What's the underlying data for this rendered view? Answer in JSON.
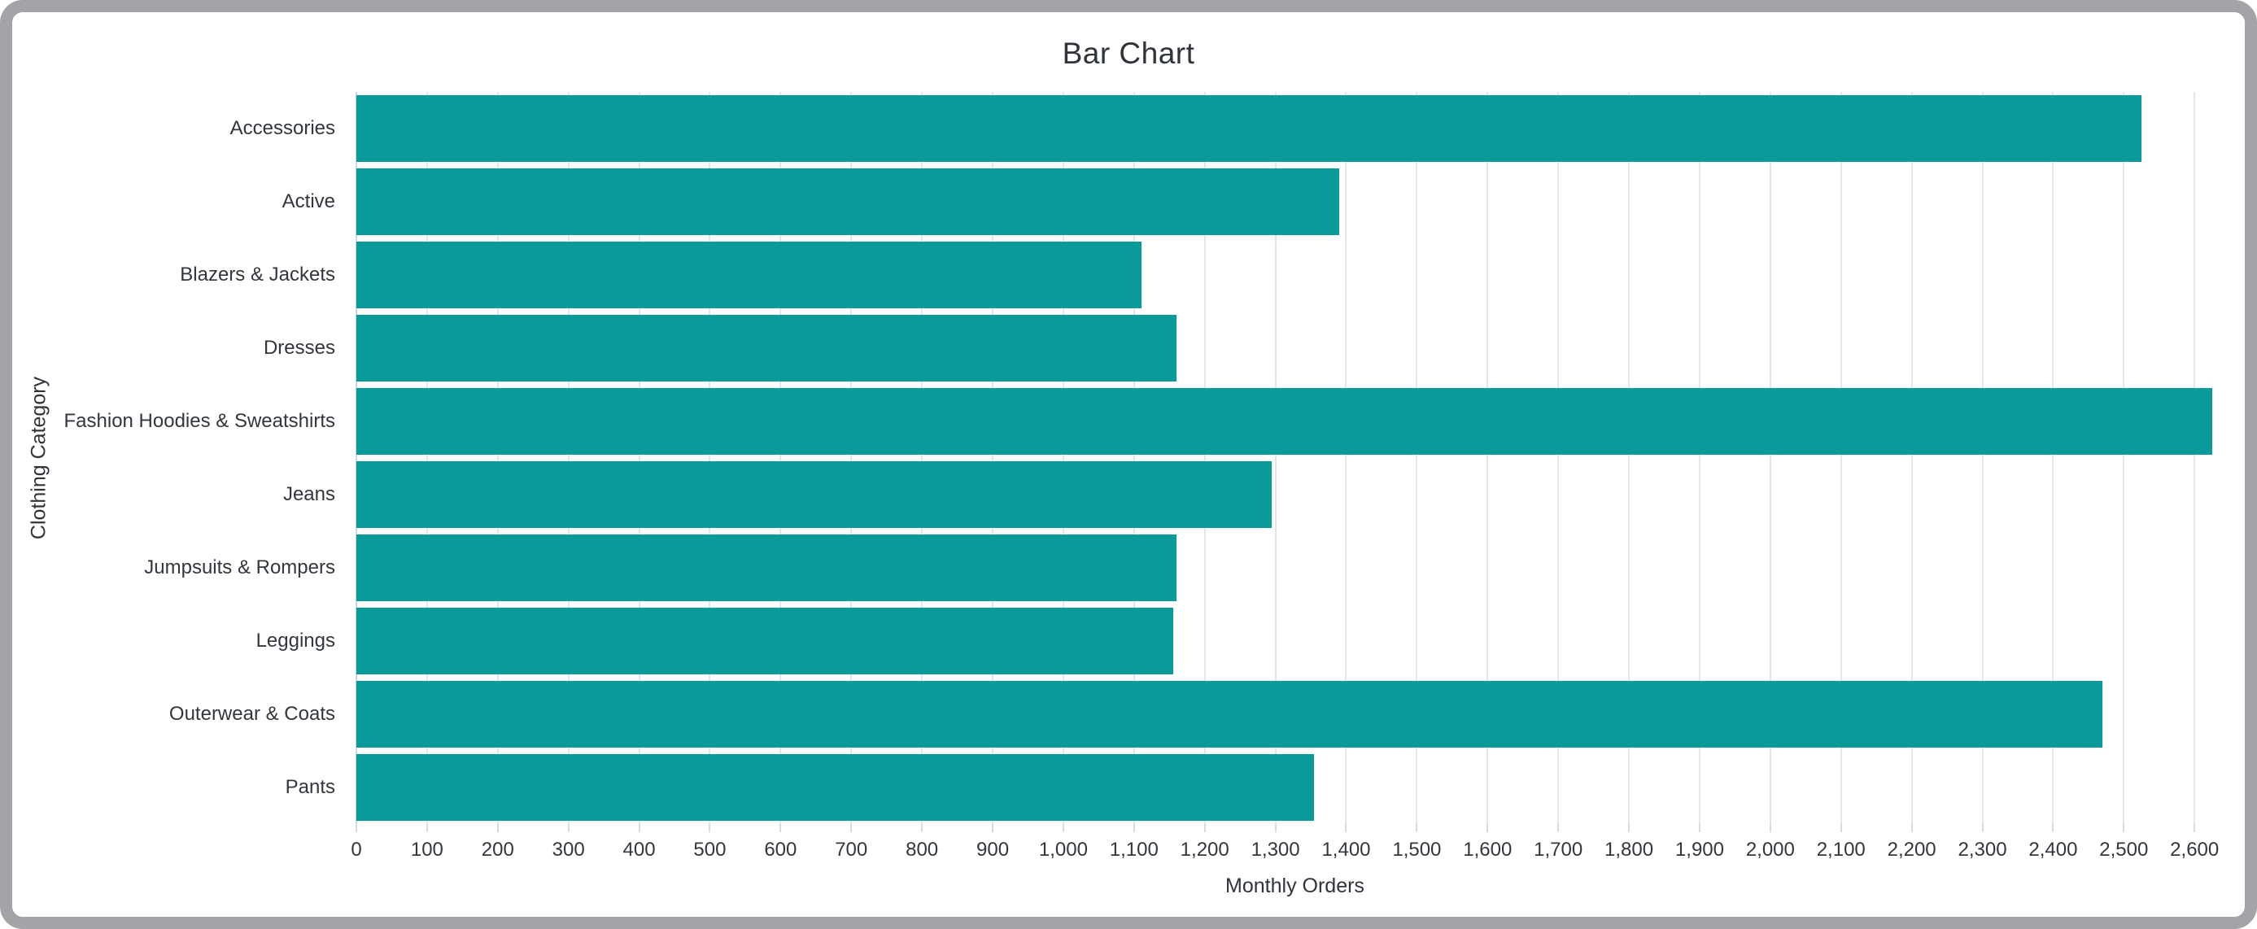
{
  "chart_data": {
    "type": "bar",
    "orientation": "horizontal",
    "title": "Bar Chart",
    "xlabel": "Monthly Orders",
    "ylabel": "Clothing Category",
    "categories": [
      "Accessories",
      "Active",
      "Blazers & Jackets",
      "Dresses",
      "Fashion Hoodies & Sweatshirts",
      "Jeans",
      "Jumpsuits & Rompers",
      "Leggings",
      "Outerwear & Coats",
      "Pants"
    ],
    "values": [
      2525,
      1390,
      1110,
      1160,
      2625,
      1295,
      1160,
      1155,
      2470,
      1355
    ],
    "bar_color": "#0a9a99",
    "xlim": [
      0,
      2655
    ],
    "x_tick_min": 0,
    "x_tick_max": 2600,
    "x_tick_step": 100,
    "grid": true,
    "legend": false
  }
}
